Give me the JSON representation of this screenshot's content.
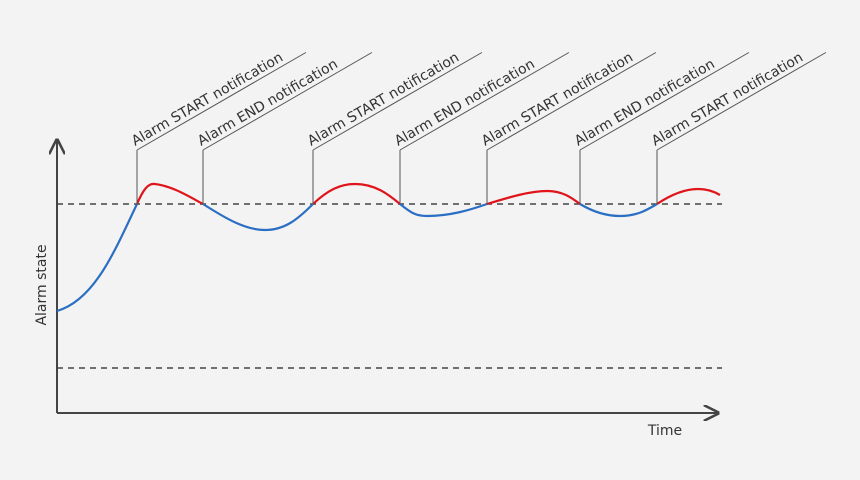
{
  "axes": {
    "y_label": "Alarm state",
    "x_label": "Time"
  },
  "annotations": [
    "Alarm START notification",
    "Alarm END notification",
    "Alarm START notification",
    "Alarm END notification",
    "Alarm START notification",
    "Alarm END notification",
    "Alarm START notification"
  ]
}
